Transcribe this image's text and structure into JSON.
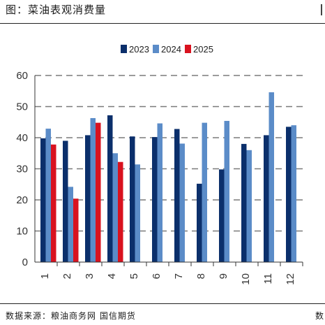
{
  "title": "图：菜油表观消费量",
  "source": "数据来源：粮油商务网  国信期货",
  "corner_glyph": "数",
  "chart_data": {
    "type": "bar",
    "categories": [
      "1",
      "2",
      "3",
      "4",
      "5",
      "6",
      "7",
      "8",
      "9",
      "10",
      "11",
      "12"
    ],
    "series": [
      {
        "name": "2023",
        "color": "#0b2f6b",
        "values": [
          39.8,
          39.0,
          40.8,
          47.2,
          40.4,
          40.2,
          42.8,
          25.2,
          29.8,
          38.0,
          40.8,
          43.5
        ]
      },
      {
        "name": "2024",
        "color": "#5b8cc8",
        "values": [
          42.9,
          24.2,
          46.3,
          35.0,
          31.4,
          44.6,
          38.1,
          44.8,
          45.4,
          36.0,
          54.6,
          44.0
        ]
      },
      {
        "name": "2025",
        "color": "#d9121f",
        "values": [
          37.8,
          20.4,
          44.8,
          32.2,
          null,
          null,
          null,
          null,
          null,
          null,
          null,
          null
        ]
      }
    ],
    "ylim": [
      0,
      60
    ],
    "yticks": [
      0,
      10,
      20,
      30,
      40,
      50,
      60
    ],
    "grid": "dashed-horizontal",
    "legend_position": "top-center",
    "xlabel": "",
    "ylabel": ""
  }
}
